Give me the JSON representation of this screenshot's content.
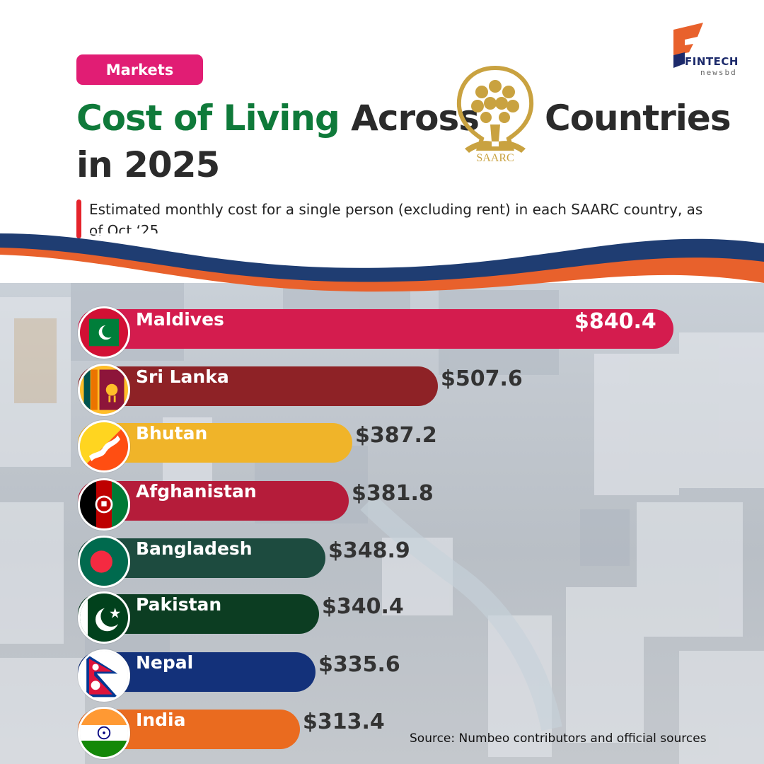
{
  "header": {
    "tag": "Markets",
    "title_green": "Cost of Living",
    "title_dark": "Across",
    "title_right": "Countries",
    "title_line2": "in 2025",
    "saarc_logo_text": "SAARC",
    "subtitle": "Estimated monthly cost for a single person (excluding rent) in each SAARC country, as of Oct ‘25",
    "brand_name": "FINTECH",
    "brand_sub": "newsbd"
  },
  "source": "Source: Numbeo contributors and official sources",
  "colors": {
    "accent_pink": "#e11d74",
    "title_green": "#0f7a3a",
    "wave_orange": "#e8612c",
    "wave_navy": "#1f3d72"
  },
  "chart_data": {
    "type": "bar",
    "orientation": "horizontal",
    "categories": [
      "Maldives",
      "Sri Lanka",
      "Bhutan",
      "Afghanistan",
      "Bangladesh",
      "Pakistan",
      "Nepal",
      "India"
    ],
    "values": [
      840.4,
      507.6,
      387.2,
      381.8,
      348.9,
      340.4,
      335.6,
      313.4
    ],
    "value_labels": [
      "$840.4",
      "$507.6",
      "$387.2",
      "$381.8",
      "$348.9",
      "$340.4",
      "$335.6",
      "$313.4"
    ],
    "bar_colors": [
      "#d41c4e",
      "#8e2226",
      "#f0b429",
      "#b51c3a",
      "#1d4b3f",
      "#0c3d22",
      "#13317a",
      "#ea6b1f"
    ],
    "flags": [
      "maldives-flag",
      "sri-lanka-flag",
      "bhutan-flag",
      "afghanistan-flag",
      "bangladesh-flag",
      "pakistan-flag",
      "nepal-flag",
      "india-flag"
    ],
    "title": "Cost of Living Across SAARC Countries in 2025",
    "xlabel": "",
    "ylabel": "",
    "grid": false,
    "legend": "none"
  }
}
